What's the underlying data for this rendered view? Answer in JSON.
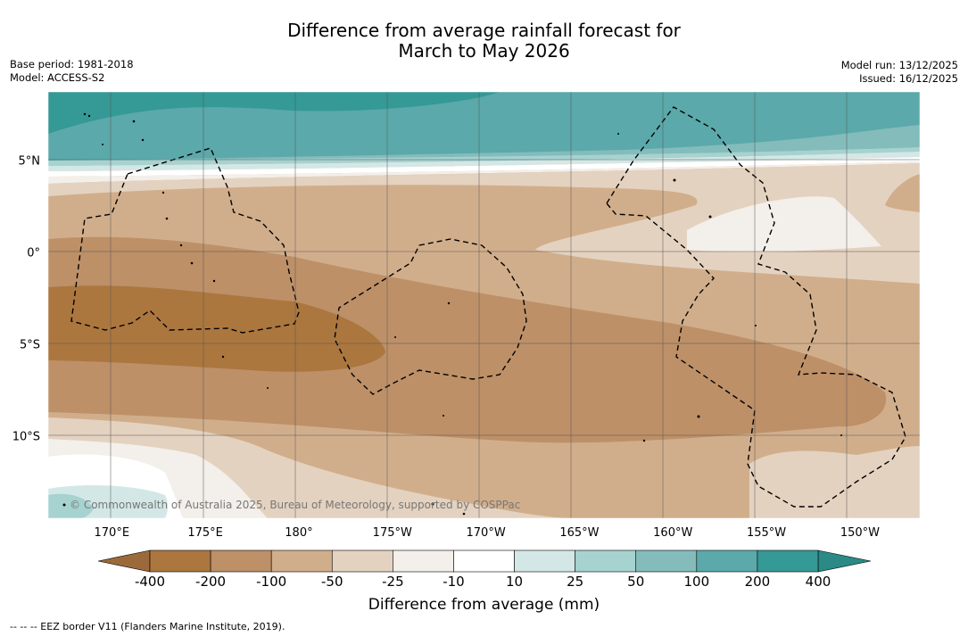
{
  "title_line1": "Difference from average rainfall forecast for",
  "title_line2": "March to May 2026",
  "base_period": "Base period: 1981-2018",
  "model": "Model: ACCESS-S2",
  "model_run": "Model run: 13/12/2025",
  "issued": "Issued: 16/12/2025",
  "copyright": "© Commonwealth of Australia 2025, Bureau of Meteorology, supported by COSPPac",
  "eez_note": "-- -- -- EEZ border V11 (Flanders Marine Institute, 2019).",
  "map": {
    "lon_range": [
      166.6,
      213.2
    ],
    "lat_range": [
      -14.4,
      8.8
    ],
    "lon_ticks": [
      {
        "value": 170,
        "label": "170°E"
      },
      {
        "value": 175,
        "label": "175°E"
      },
      {
        "value": 180,
        "label": "180°"
      },
      {
        "value": 185,
        "label": "175°W"
      },
      {
        "value": 190,
        "label": "170°W"
      },
      {
        "value": 195,
        "label": "165°W"
      },
      {
        "value": 200,
        "label": "160°W"
      },
      {
        "value": 205,
        "label": "155°W"
      },
      {
        "value": 210,
        "label": "150°W"
      }
    ],
    "lat_ticks": [
      {
        "value": 5,
        "label": "5°N"
      },
      {
        "value": 0,
        "label": "0°"
      },
      {
        "value": -5,
        "label": "5°S"
      },
      {
        "value": -10,
        "label": "10°S"
      }
    ]
  },
  "colorbar": {
    "title": "Difference from average (mm)",
    "ticks": [
      "-400",
      "-200",
      "-100",
      "-50",
      "-25",
      "-10",
      "10",
      "25",
      "50",
      "100",
      "200",
      "400"
    ],
    "low_extend_color": "#9c6a3a",
    "high_extend_color": "#2b8a85",
    "colors": [
      "#ab773f",
      "#bd9068",
      "#d1ae8b",
      "#e4d2c0",
      "#f3efea",
      "#ffffff",
      "#d3e8e6",
      "#a6d2d0",
      "#83bcbb",
      "#5ba9aa",
      "#359996"
    ]
  }
}
